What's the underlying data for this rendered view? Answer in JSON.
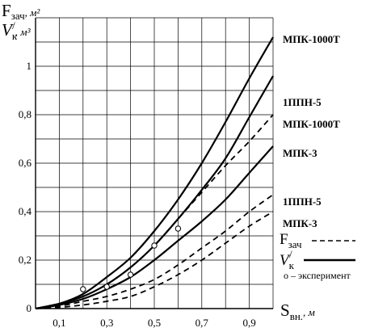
{
  "chart_data": {
    "type": "line",
    "xlim": [
      0,
      1.0
    ],
    "ylim": [
      0,
      1.2
    ],
    "x_ticks": [
      "0,1",
      "0,3",
      "0,5",
      "0,7",
      "0,9"
    ],
    "x_tick_values": [
      0.1,
      0.3,
      0.5,
      0.7,
      0.9
    ],
    "y_ticks": [
      "0",
      "0,2",
      "0,4",
      "0,6",
      "0,8",
      "1"
    ],
    "y_tick_values": [
      0,
      0.2,
      0.4,
      0.6,
      0.8,
      1.0
    ],
    "grid": true,
    "y_axis_label": {
      "line1_main": "F",
      "line1_sub": "зач",
      "line1_unit": ", м²",
      "line2_main": "V",
      "line2_sub": "к",
      "line2_prime": "/",
      "line2_unit": ", м³"
    },
    "x_axis_label": {
      "main": "S",
      "sub": "вн.",
      "unit": ", м"
    },
    "series": [
      {
        "name": "МПК-1000Т",
        "style": "solid",
        "x": [
          0,
          0.1,
          0.2,
          0.3,
          0.4,
          0.5,
          0.6,
          0.7,
          0.8,
          0.9,
          1.0
        ],
        "y": [
          0,
          0.02,
          0.06,
          0.13,
          0.21,
          0.32,
          0.45,
          0.6,
          0.77,
          0.95,
          1.12
        ]
      },
      {
        "name": "1ППН-5",
        "style": "solid",
        "x": [
          0,
          0.1,
          0.2,
          0.3,
          0.4,
          0.5,
          0.6,
          0.7,
          0.8,
          0.9,
          1.0
        ],
        "y": [
          0,
          0.02,
          0.05,
          0.1,
          0.17,
          0.26,
          0.37,
          0.49,
          0.62,
          0.79,
          0.96
        ]
      },
      {
        "name": "МПК-1000Т",
        "style": "dashed",
        "x": [
          0,
          0.1,
          0.2,
          0.3,
          0.4,
          0.5,
          0.6,
          0.7,
          0.8,
          0.9,
          1.0
        ],
        "y": [
          0,
          0.02,
          0.05,
          0.1,
          0.17,
          0.26,
          0.37,
          0.48,
          0.59,
          0.69,
          0.8
        ]
      },
      {
        "name": "МПК-3",
        "style": "solid",
        "x": [
          0,
          0.1,
          0.2,
          0.3,
          0.4,
          0.5,
          0.6,
          0.7,
          0.8,
          0.9,
          1.0
        ],
        "y": [
          0,
          0.015,
          0.04,
          0.08,
          0.13,
          0.2,
          0.28,
          0.36,
          0.45,
          0.56,
          0.67
        ]
      },
      {
        "name": "1ППН-5",
        "style": "dashed",
        "x": [
          0,
          0.1,
          0.2,
          0.3,
          0.4,
          0.5,
          0.6,
          0.7,
          0.8,
          0.9,
          1.0
        ],
        "y": [
          0,
          0.01,
          0.03,
          0.05,
          0.08,
          0.12,
          0.18,
          0.25,
          0.32,
          0.4,
          0.47
        ]
      },
      {
        "name": "МПК-3",
        "style": "dashed",
        "x": [
          0,
          0.1,
          0.2,
          0.3,
          0.4,
          0.5,
          0.6,
          0.7,
          0.8,
          0.9,
          1.0
        ],
        "y": [
          0,
          0.005,
          0.015,
          0.03,
          0.05,
          0.09,
          0.14,
          0.2,
          0.27,
          0.34,
          0.4
        ]
      }
    ],
    "experiment_points": [
      {
        "x": 0.2,
        "y": 0.08
      },
      {
        "x": 0.3,
        "y": 0.09
      },
      {
        "x": 0.4,
        "y": 0.14
      },
      {
        "x": 0.5,
        "y": 0.26
      },
      {
        "x": 0.6,
        "y": 0.33
      }
    ],
    "right_labels": [
      {
        "text": "МПК-1000Т",
        "y": 1.11
      },
      {
        "text": "1ППН-5",
        "y": 0.85
      },
      {
        "text": "МПК-1000Т",
        "y": 0.76
      },
      {
        "text": "МПК-3",
        "y": 0.64
      },
      {
        "text": "1ППН-5",
        "y": 0.44
      },
      {
        "text": "МПК-3",
        "y": 0.35
      }
    ],
    "legend": {
      "dashed_main": "F",
      "dashed_sub": "зач",
      "solid_main": "V",
      "solid_sub": "к",
      "solid_prime": "/",
      "points": "o – эксперимент"
    }
  }
}
